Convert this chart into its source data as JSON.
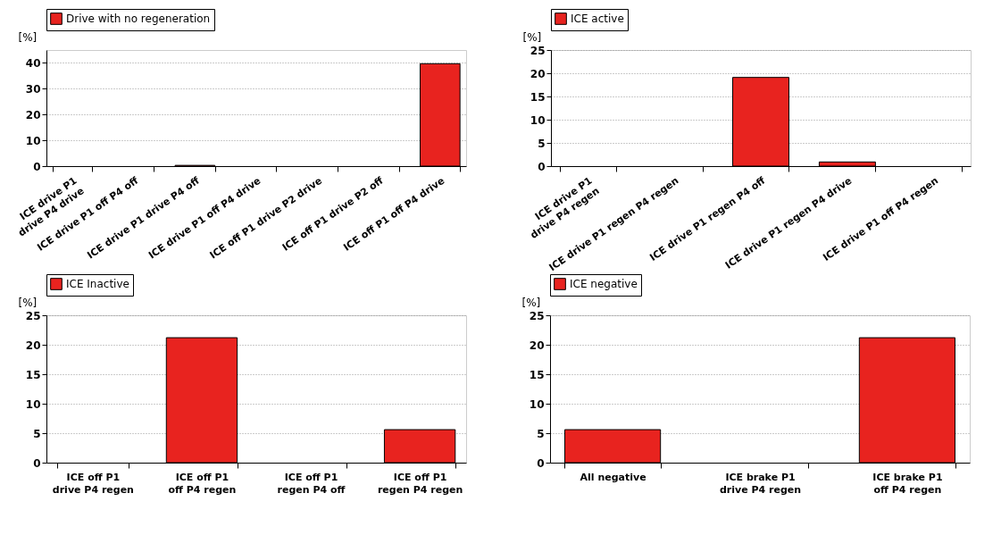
{
  "chart_data": [
    {
      "type": "bar",
      "ylabel": "[%]",
      "categories": [
        "ICE drive P1\ndrive P4 drive",
        "ICE drive P1 off P4 off",
        "ICE drive P1 drive P4 off",
        "ICE drive P1 off P4 drive",
        "ICE off P1 drive P2 drive",
        "ICE off P1 drive P2 off",
        "ICE off P1 off P4 drive"
      ],
      "series": [
        {
          "name": "Drive with no regeneration",
          "color": "#e8231f",
          "values": [
            0,
            0,
            0.3,
            0,
            0,
            0,
            39.7
          ]
        }
      ],
      "ylim": [
        0,
        45
      ],
      "yticks": [
        0,
        10,
        20,
        30,
        40
      ],
      "grid": "y",
      "legend": "top left"
    },
    {
      "type": "bar",
      "ylabel": "[%]",
      "categories": [
        "ICE drive P1\ndrive P4 regen",
        "ICE drive P1 regen P4 regen",
        "ICE drive P1 regen P4 off",
        "ICE drive P1 regen P4 drive",
        "ICE drive P1 off P4 regen"
      ],
      "series": [
        {
          "name": "ICE active",
          "color": "#e8231f",
          "values": [
            0,
            0,
            19.1,
            0.9,
            0
          ]
        }
      ],
      "ylim": [
        0,
        25
      ],
      "yticks": [
        0,
        5,
        10,
        15,
        20,
        25
      ],
      "grid": "y",
      "legend": "top left"
    },
    {
      "type": "bar",
      "ylabel": "[%]",
      "categories": [
        "ICE off P1\ndrive P4 regen",
        "ICE off P1\noff P4 regen",
        "ICE off P1\nregen P4 off",
        "ICE off P1\nregen P4 regen"
      ],
      "series": [
        {
          "name": "ICE Inactive",
          "color": "#e8231f",
          "values": [
            0,
            21.2,
            0,
            5.6
          ]
        }
      ],
      "ylim": [
        0,
        25
      ],
      "yticks": [
        0,
        5,
        10,
        15,
        20,
        25
      ],
      "grid": "y",
      "legend": "top left"
    },
    {
      "type": "bar",
      "ylabel": "[%]",
      "categories": [
        "All negative",
        "ICE brake P1\ndrive P4 regen",
        "ICE brake P1\noff P4 regen"
      ],
      "series": [
        {
          "name": "ICE negative",
          "color": "#e8231f",
          "values": [
            5.6,
            0,
            21.2
          ]
        }
      ],
      "ylim": [
        0,
        25
      ],
      "yticks": [
        0,
        5,
        10,
        15,
        20,
        25
      ],
      "grid": "y",
      "legend": "top left"
    }
  ]
}
